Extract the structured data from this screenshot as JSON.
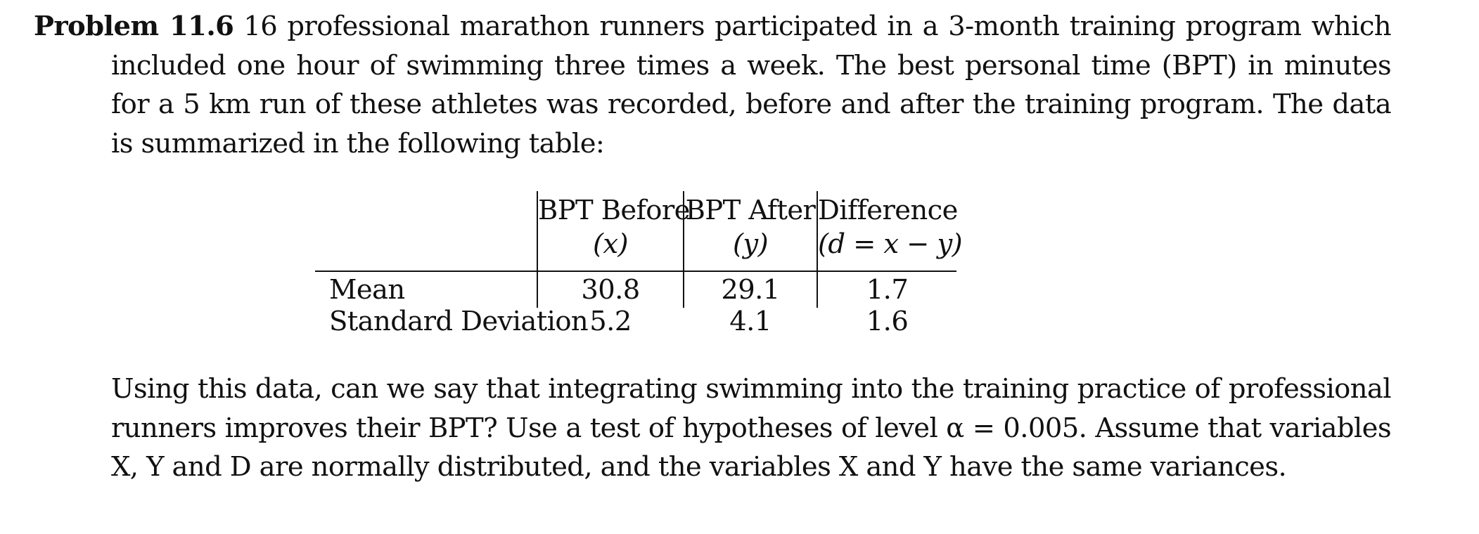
{
  "problem": {
    "label": "Problem 11.6",
    "intro": "16 professional marathon runners participated in a 3-month training program which included one hour of swimming three times a week. The best personal time (BPT) in minutes for a 5 km run of these athletes was recorded, before and after the training program. The data is summarized in the following table:"
  },
  "table": {
    "columns": [
      {
        "title": "BPT Before",
        "sub": "(x)"
      },
      {
        "title": "BPT After",
        "sub": "(y)"
      },
      {
        "title": "Difference",
        "sub": "(d = x − y)"
      }
    ],
    "rows": [
      {
        "label": "Mean",
        "values": [
          "30.8",
          "29.1",
          "1.7"
        ]
      },
      {
        "label": "Standard Deviation",
        "values": [
          "5.2",
          "4.1",
          "1.6"
        ]
      }
    ]
  },
  "question": {
    "text": "Using this data, can we say that integrating swimming into the training practice of professional runners improves their BPT? Use a test of hypotheses of level α = 0.005. Assume that variables X, Y and D are normally distributed, and the variables X and Y have the same variances."
  }
}
